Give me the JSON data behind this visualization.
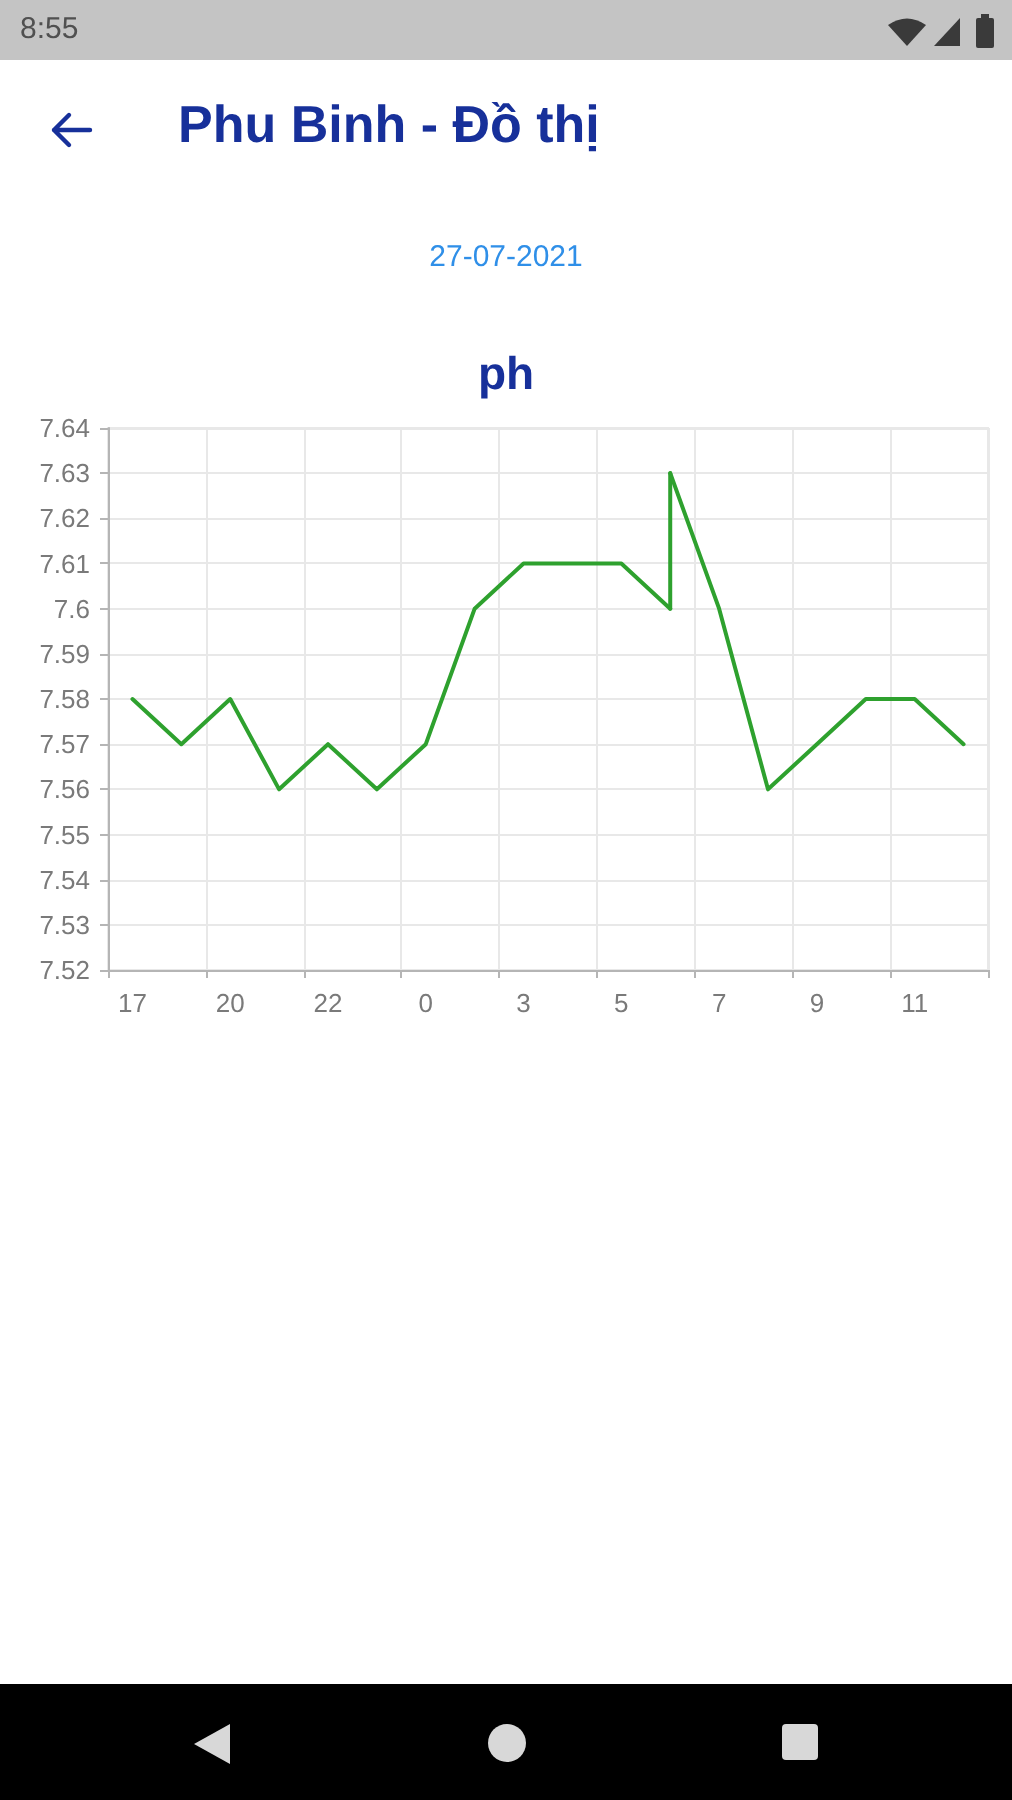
{
  "chart_data": {
    "type": "line",
    "title": "ph",
    "subtitle": "27-07-2021",
    "annotations": [
      "8:55",
      "Phu Binh - Đồ thị"
    ],
    "categories": [
      "17",
      null,
      "20",
      null,
      "22",
      null,
      "0",
      null,
      "3",
      null,
      "5",
      null,
      "7",
      null,
      "9",
      null,
      "11",
      null
    ],
    "series": [
      {
        "color": "#2ea12e",
        "values": [
          7.58,
          7.57,
          7.58,
          7.56,
          7.57,
          7.56,
          7.57,
          7.6,
          7.61,
          7.61,
          7.61,
          7.6,
          null,
          null,
          null,
          null,
          null,
          null
        ],
        "errors": [
          null,
          null,
          null,
          null,
          null,
          null,
          null,
          null,
          null,
          null,
          null,
          [
            7.6,
            7.63
          ],
          null,
          null,
          null,
          null,
          null,
          null
        ]
      },
      {
        "color": "#2ea12e",
        "values": [
          null,
          null,
          null,
          null,
          null,
          null,
          null,
          null,
          null,
          null,
          null,
          7.63,
          7.6,
          7.56,
          7.57,
          7.58,
          7.58,
          7.57
        ]
      }
    ],
    "ylim": [
      7.52,
      7.64
    ],
    "yticks": [
      7.52,
      7.53,
      7.54,
      7.55,
      7.56,
      7.57,
      7.58,
      7.59,
      7.6,
      7.61,
      7.62,
      7.63,
      7.64
    ],
    "grid": true,
    "marker": "none",
    "line_style": "solid"
  }
}
